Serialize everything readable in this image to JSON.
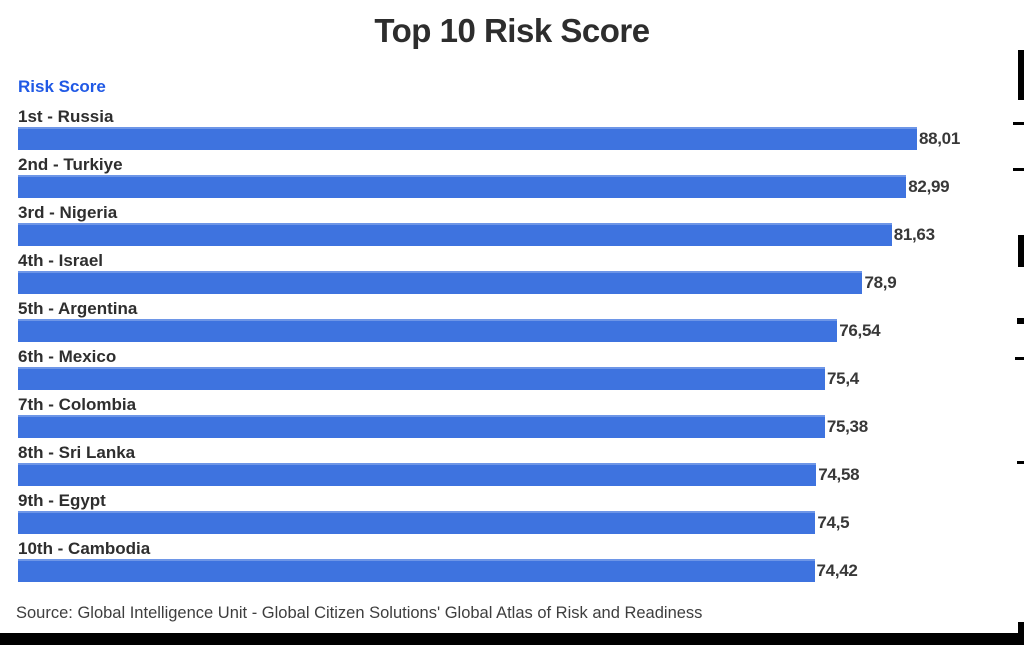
{
  "title": "Top 10 Risk Score",
  "axis_label": "Risk Score",
  "source": "Source: Global Intelligence Unit - Global Citizen Solutions' Global Atlas of Risk and Readiness",
  "colors": {
    "bar": "#3e73df",
    "axis_label_blue": "#2059e5",
    "title_text": "#2d2d2d",
    "value_text": "#383838",
    "source_text": "#3e3e3e",
    "border_black": "#000000"
  },
  "chart_data": {
    "type": "bar",
    "orientation": "horizontal",
    "title": "Top 10 Risk Score",
    "ylabel": "Risk Score",
    "xlabel": "",
    "xlim": [
      0,
      88.01
    ],
    "grid": false,
    "legend": false,
    "value_labels_shown": true,
    "decimal_separator": ",",
    "categories": [
      "1st - Russia",
      "2nd - Turkiye",
      "3rd - Nigeria",
      "4th - Israel",
      "5th - Argentina",
      "6th - Mexico",
      "7th - Colombia",
      "8th - Sri Lanka",
      "9th - Egypt",
      "10th - Cambodia"
    ],
    "values": [
      88.01,
      82.99,
      81.63,
      78.9,
      76.54,
      75.4,
      75.38,
      74.58,
      74.5,
      74.42
    ],
    "value_labels": [
      "88,01",
      "82,99",
      "81,63",
      "78,9",
      "76,54",
      "75,4",
      "75,38",
      "74,58",
      "74,5",
      "74,42"
    ]
  }
}
